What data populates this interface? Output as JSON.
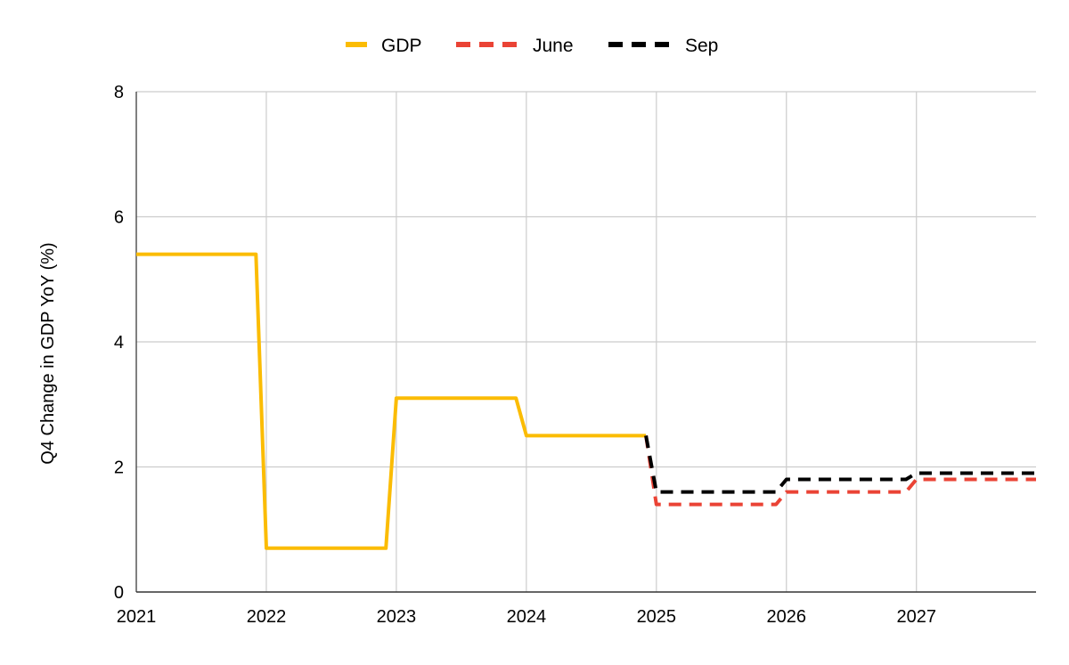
{
  "chart_data": {
    "type": "line",
    "title": "",
    "xlabel": "",
    "ylabel": "Q4 Change in GDP YoY (%)",
    "xlim": [
      2021,
      2027.92
    ],
    "ylim": [
      0,
      8
    ],
    "x_ticks": [
      2021,
      2022,
      2023,
      2024,
      2025,
      2026,
      2027
    ],
    "x_tick_labels": [
      "2021",
      "2022",
      "2023",
      "2024",
      "2025",
      "2026",
      "2027"
    ],
    "y_ticks": [
      0,
      2,
      4,
      6,
      8
    ],
    "y_tick_labels": [
      "0",
      "2",
      "4",
      "6",
      "8"
    ],
    "grid": true,
    "legend": "top-center",
    "series": [
      {
        "name": "GDP",
        "color": "#fbbc04",
        "style": "solid",
        "points": [
          [
            2021.0,
            5.4
          ],
          [
            2021.92,
            5.4
          ],
          [
            2022.0,
            0.7
          ],
          [
            2022.92,
            0.7
          ],
          [
            2023.0,
            3.1
          ],
          [
            2023.92,
            3.1
          ],
          [
            2024.0,
            2.5
          ],
          [
            2024.92,
            2.5
          ]
        ]
      },
      {
        "name": "June",
        "color": "#ea4335",
        "style": "dashed",
        "points": [
          [
            2024.92,
            2.5
          ],
          [
            2025.0,
            1.4
          ],
          [
            2025.92,
            1.4
          ],
          [
            2026.0,
            1.6
          ],
          [
            2026.92,
            1.6
          ],
          [
            2027.0,
            1.8
          ],
          [
            2027.92,
            1.8
          ]
        ]
      },
      {
        "name": "Sep",
        "color": "#000000",
        "style": "dashed",
        "points": [
          [
            2024.92,
            2.5
          ],
          [
            2025.0,
            1.6
          ],
          [
            2025.92,
            1.6
          ],
          [
            2026.0,
            1.8
          ],
          [
            2026.92,
            1.8
          ],
          [
            2027.0,
            1.9
          ],
          [
            2027.92,
            1.9
          ]
        ]
      }
    ]
  }
}
